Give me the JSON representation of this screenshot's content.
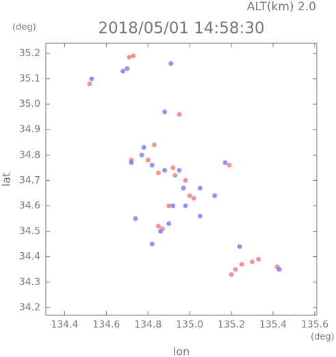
{
  "chart_data": {
    "type": "scatter",
    "title": "2018/05/01 14:58:30",
    "subtitle": "ALT(km) 2.0",
    "y_unit": "(deg)",
    "x_unit": "(deg)",
    "x_label": "lon",
    "y_label": "lat",
    "xlim": [
      134.31,
      135.61
    ],
    "ylim": [
      34.17,
      35.24
    ],
    "xticks": [
      134.4,
      134.6,
      134.8,
      {
        "value": 135,
        "label": "135.0"
      },
      135.2,
      135.4,
      135.6
    ],
    "yticks": [
      34.2,
      34.3,
      34.4,
      34.5,
      34.6,
      34.7,
      34.8,
      34.9,
      {
        "value": 35,
        "label": "35.0"
      },
      35.1,
      35.2
    ],
    "series": [
      {
        "color": "#f07878",
        "x": [
          134.73,
          134.71,
          134.52,
          134.95,
          134.72,
          134.8,
          134.85,
          134.93,
          134.98,
          135.0,
          135.02,
          134.9,
          134.85,
          134.87,
          135.2,
          135.22,
          135.25,
          135.3,
          135.33,
          135.42,
          134.92,
          134.83,
          135.19
        ],
        "values": [
          35.19,
          35.185,
          35.08,
          34.96,
          34.78,
          34.78,
          34.73,
          34.72,
          34.7,
          34.64,
          34.63,
          34.6,
          34.52,
          34.51,
          34.33,
          34.35,
          34.37,
          34.38,
          34.39,
          34.36,
          34.75,
          34.84,
          34.76
        ]
      },
      {
        "color": "#7878f0",
        "x": [
          134.7,
          134.68,
          134.53,
          134.88,
          134.91,
          134.72,
          134.77,
          134.82,
          134.88,
          134.95,
          134.97,
          135.05,
          135.12,
          134.92,
          134.98,
          135.05,
          134.74,
          134.86,
          134.9,
          134.82,
          135.17,
          135.43,
          135.24,
          134.78
        ],
        "values": [
          35.14,
          35.13,
          35.1,
          34.97,
          35.16,
          34.77,
          34.8,
          34.76,
          34.74,
          34.74,
          34.67,
          34.67,
          34.64,
          34.6,
          34.6,
          34.56,
          34.55,
          34.5,
          34.53,
          34.45,
          34.77,
          34.35,
          34.44,
          34.83
        ]
      }
    ]
  }
}
